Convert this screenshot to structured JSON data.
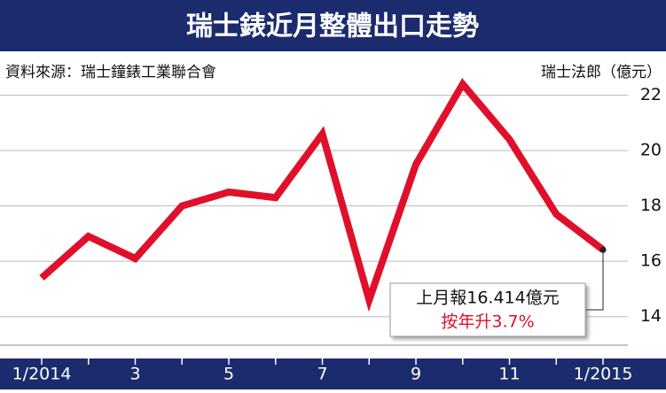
{
  "chart_data": {
    "type": "line",
    "title": "瑞士錶近月整體出口走勢",
    "source": "資料來源：瑞士鐘錶工業聯合會",
    "y_axis_label": "瑞士法郎（億元）",
    "categories": [
      "1/2014",
      null,
      "3",
      null,
      "5",
      null,
      "7",
      null,
      "9",
      null,
      "11",
      null,
      "1/2015"
    ],
    "values": [
      15.4,
      16.9,
      16.1,
      18.0,
      18.5,
      18.3,
      20.6,
      14.6,
      19.5,
      22.4,
      20.4,
      17.7,
      16.414
    ],
    "color": "#e0102a",
    "ylim": [
      13,
      23.2
    ],
    "yticks": [
      14,
      16,
      18,
      20,
      22
    ],
    "grid": true,
    "annotations": [
      "上月報16.414億元",
      "按年升3.7%"
    ]
  }
}
